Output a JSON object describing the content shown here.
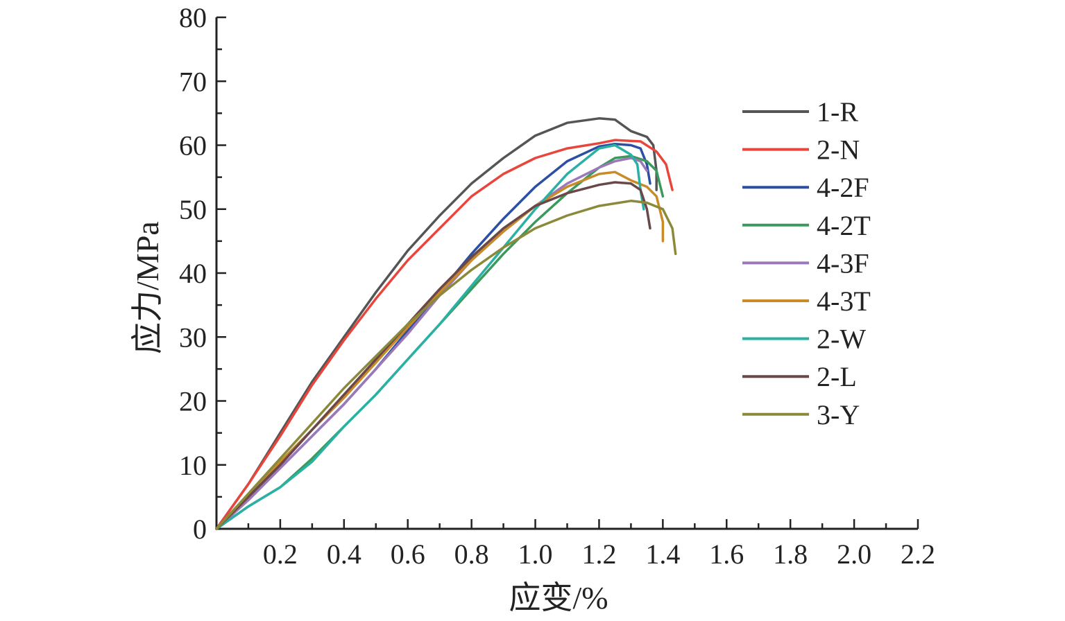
{
  "chart_data": {
    "type": "line",
    "xlabel": "应变/%",
    "ylabel": "应力/MPa",
    "xlim": [
      0,
      2.2
    ],
    "ylim": [
      0,
      80
    ],
    "xticks": [
      "0.2",
      "0.4",
      "0.6",
      "0.8",
      "1.0",
      "1.2",
      "1.4",
      "1.6",
      "1.8",
      "2.0",
      "2.2"
    ],
    "yticks": [
      "0",
      "10",
      "20",
      "30",
      "40",
      "50",
      "60",
      "70",
      "80"
    ],
    "grid": false,
    "legend_position": "right",
    "series": [
      {
        "name": "1-R",
        "color": "#555555",
        "x": [
          0,
          0.1,
          0.2,
          0.3,
          0.4,
          0.5,
          0.6,
          0.7,
          0.8,
          0.9,
          1.0,
          1.1,
          1.2,
          1.25,
          1.3,
          1.35,
          1.37,
          1.38,
          1.38
        ],
        "y": [
          0,
          7,
          15,
          23,
          30,
          37,
          43.5,
          49,
          54,
          58,
          61.5,
          63.5,
          64.2,
          64,
          62.2,
          61.3,
          60,
          56,
          53
        ]
      },
      {
        "name": "2-N",
        "color": "#e8453c",
        "x": [
          0,
          0.1,
          0.2,
          0.3,
          0.4,
          0.5,
          0.6,
          0.7,
          0.8,
          0.9,
          1.0,
          1.1,
          1.2,
          1.25,
          1.33,
          1.38,
          1.41,
          1.43
        ],
        "y": [
          0,
          7,
          14.5,
          22.5,
          29.5,
          36,
          42,
          47,
          52,
          55.5,
          58,
          59.5,
          60.3,
          60.8,
          60.6,
          59,
          57,
          53
        ]
      },
      {
        "name": "4-2F",
        "color": "#2b4fa3",
        "x": [
          0,
          0.1,
          0.2,
          0.3,
          0.4,
          0.5,
          0.6,
          0.7,
          0.8,
          0.9,
          1.0,
          1.1,
          1.2,
          1.25,
          1.3,
          1.33,
          1.35,
          1.36
        ],
        "y": [
          0,
          4.5,
          9.5,
          14.5,
          19.5,
          25,
          31,
          37,
          43,
          48.5,
          53.5,
          57.5,
          59.8,
          60.2,
          60,
          59.5,
          57,
          54
        ]
      },
      {
        "name": "4-2T",
        "color": "#3a9a5c",
        "x": [
          0,
          0.1,
          0.2,
          0.3,
          0.4,
          0.5,
          0.6,
          0.7,
          0.8,
          0.9,
          1.0,
          1.1,
          1.2,
          1.25,
          1.3,
          1.35,
          1.38,
          1.4
        ],
        "y": [
          0,
          3.5,
          6.5,
          11,
          16,
          21,
          26.5,
          32,
          37.5,
          43,
          48,
          52.5,
          56.5,
          58,
          58.3,
          57.5,
          56,
          52
        ]
      },
      {
        "name": "4-3F",
        "color": "#9b79b8",
        "x": [
          0,
          0.1,
          0.2,
          0.3,
          0.4,
          0.5,
          0.6,
          0.7,
          0.8,
          0.9,
          1.0,
          1.1,
          1.2,
          1.25,
          1.3,
          1.33,
          1.35
        ],
        "y": [
          0,
          4.5,
          9.5,
          14.5,
          19.5,
          25,
          30.5,
          36.5,
          42,
          46.5,
          50.5,
          54,
          56.5,
          57.5,
          58,
          57.5,
          56
        ]
      },
      {
        "name": "4-3T",
        "color": "#c98a28",
        "x": [
          0,
          0.1,
          0.2,
          0.3,
          0.4,
          0.5,
          0.6,
          0.7,
          0.8,
          0.9,
          1.0,
          1.1,
          1.2,
          1.25,
          1.3,
          1.35,
          1.38,
          1.4,
          1.4
        ],
        "y": [
          0,
          5,
          10.5,
          15.5,
          20.5,
          26,
          31.5,
          37,
          42,
          46.5,
          50.5,
          53.5,
          55.5,
          55.8,
          54.5,
          53.5,
          52,
          48,
          45
        ]
      },
      {
        "name": "2-W",
        "color": "#2ab0a5",
        "x": [
          0,
          0.1,
          0.2,
          0.3,
          0.4,
          0.5,
          0.6,
          0.7,
          0.8,
          0.9,
          1.0,
          1.1,
          1.2,
          1.25,
          1.3,
          1.32,
          1.33,
          1.34
        ],
        "y": [
          0,
          3.5,
          6.5,
          10.5,
          16,
          21,
          26.5,
          32,
          38,
          44,
          50,
          55.5,
          59.5,
          60,
          58.5,
          57,
          53,
          50
        ]
      },
      {
        "name": "2-L",
        "color": "#6a4748",
        "x": [
          0,
          0.1,
          0.2,
          0.3,
          0.4,
          0.5,
          0.6,
          0.7,
          0.8,
          0.9,
          1.0,
          1.1,
          1.2,
          1.25,
          1.3,
          1.33,
          1.35,
          1.36
        ],
        "y": [
          0,
          5,
          10,
          15.5,
          21,
          26.5,
          32,
          37.5,
          42.5,
          47,
          50.5,
          52.5,
          53.8,
          54.2,
          54,
          53,
          50,
          47
        ]
      },
      {
        "name": "3-Y",
        "color": "#8a8a3a",
        "x": [
          0,
          0.1,
          0.2,
          0.3,
          0.4,
          0.5,
          0.6,
          0.7,
          0.8,
          0.9,
          1.0,
          1.1,
          1.2,
          1.3,
          1.35,
          1.4,
          1.43,
          1.44
        ],
        "y": [
          0,
          5.5,
          11,
          16.5,
          22,
          27,
          32,
          36.5,
          40.5,
          44,
          47,
          49,
          50.5,
          51.3,
          51,
          50,
          47,
          43
        ]
      }
    ]
  }
}
